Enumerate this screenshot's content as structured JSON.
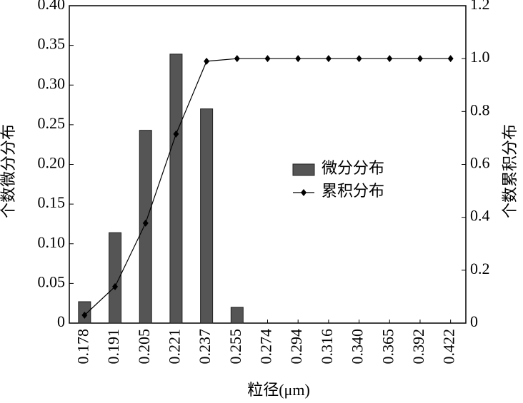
{
  "chart_data": {
    "type": "bar",
    "x_label": "粒径(μm)",
    "y_label": "个数微分分布",
    "y2_label": "个数累积分布",
    "categories": [
      "0.178",
      "0.191",
      "0.205",
      "0.221",
      "0.237",
      "0.255",
      "0.274",
      "0.294",
      "0.316",
      "0.340",
      "0.365",
      "0.392",
      "0.422"
    ],
    "series": [
      {
        "name": "微分分布",
        "type": "bar",
        "color": "#555555",
        "values": [
          0.027,
          0.114,
          0.243,
          0.339,
          0.27,
          0.02,
          0,
          0,
          0,
          0,
          0,
          0,
          0
        ]
      },
      {
        "name": "累积分布",
        "type": "line",
        "axis": "y2",
        "color": "#000000",
        "values": [
          0.03,
          0.138,
          0.378,
          0.715,
          0.99,
          1.0,
          1.0,
          1.0,
          1.0,
          1.0,
          1.0,
          1.0,
          1.0
        ]
      }
    ],
    "ylim": [
      0,
      0.4
    ],
    "yticks": [
      0,
      0.05,
      {
        "value": 0.1,
        "label": "0.10"
      },
      0.15,
      {
        "value": 0.2,
        "label": "0.20"
      },
      0.25,
      {
        "value": 0.3,
        "label": "0.30"
      },
      0.35,
      {
        "value": 0.4,
        "label": "0.40"
      }
    ],
    "y2lim": [
      0,
      1.2
    ],
    "y2ticks": [
      0,
      0.2,
      0.4,
      0.6,
      0.8,
      {
        "value": 1,
        "label": "1.0"
      },
      1.2
    ],
    "grid": false
  }
}
